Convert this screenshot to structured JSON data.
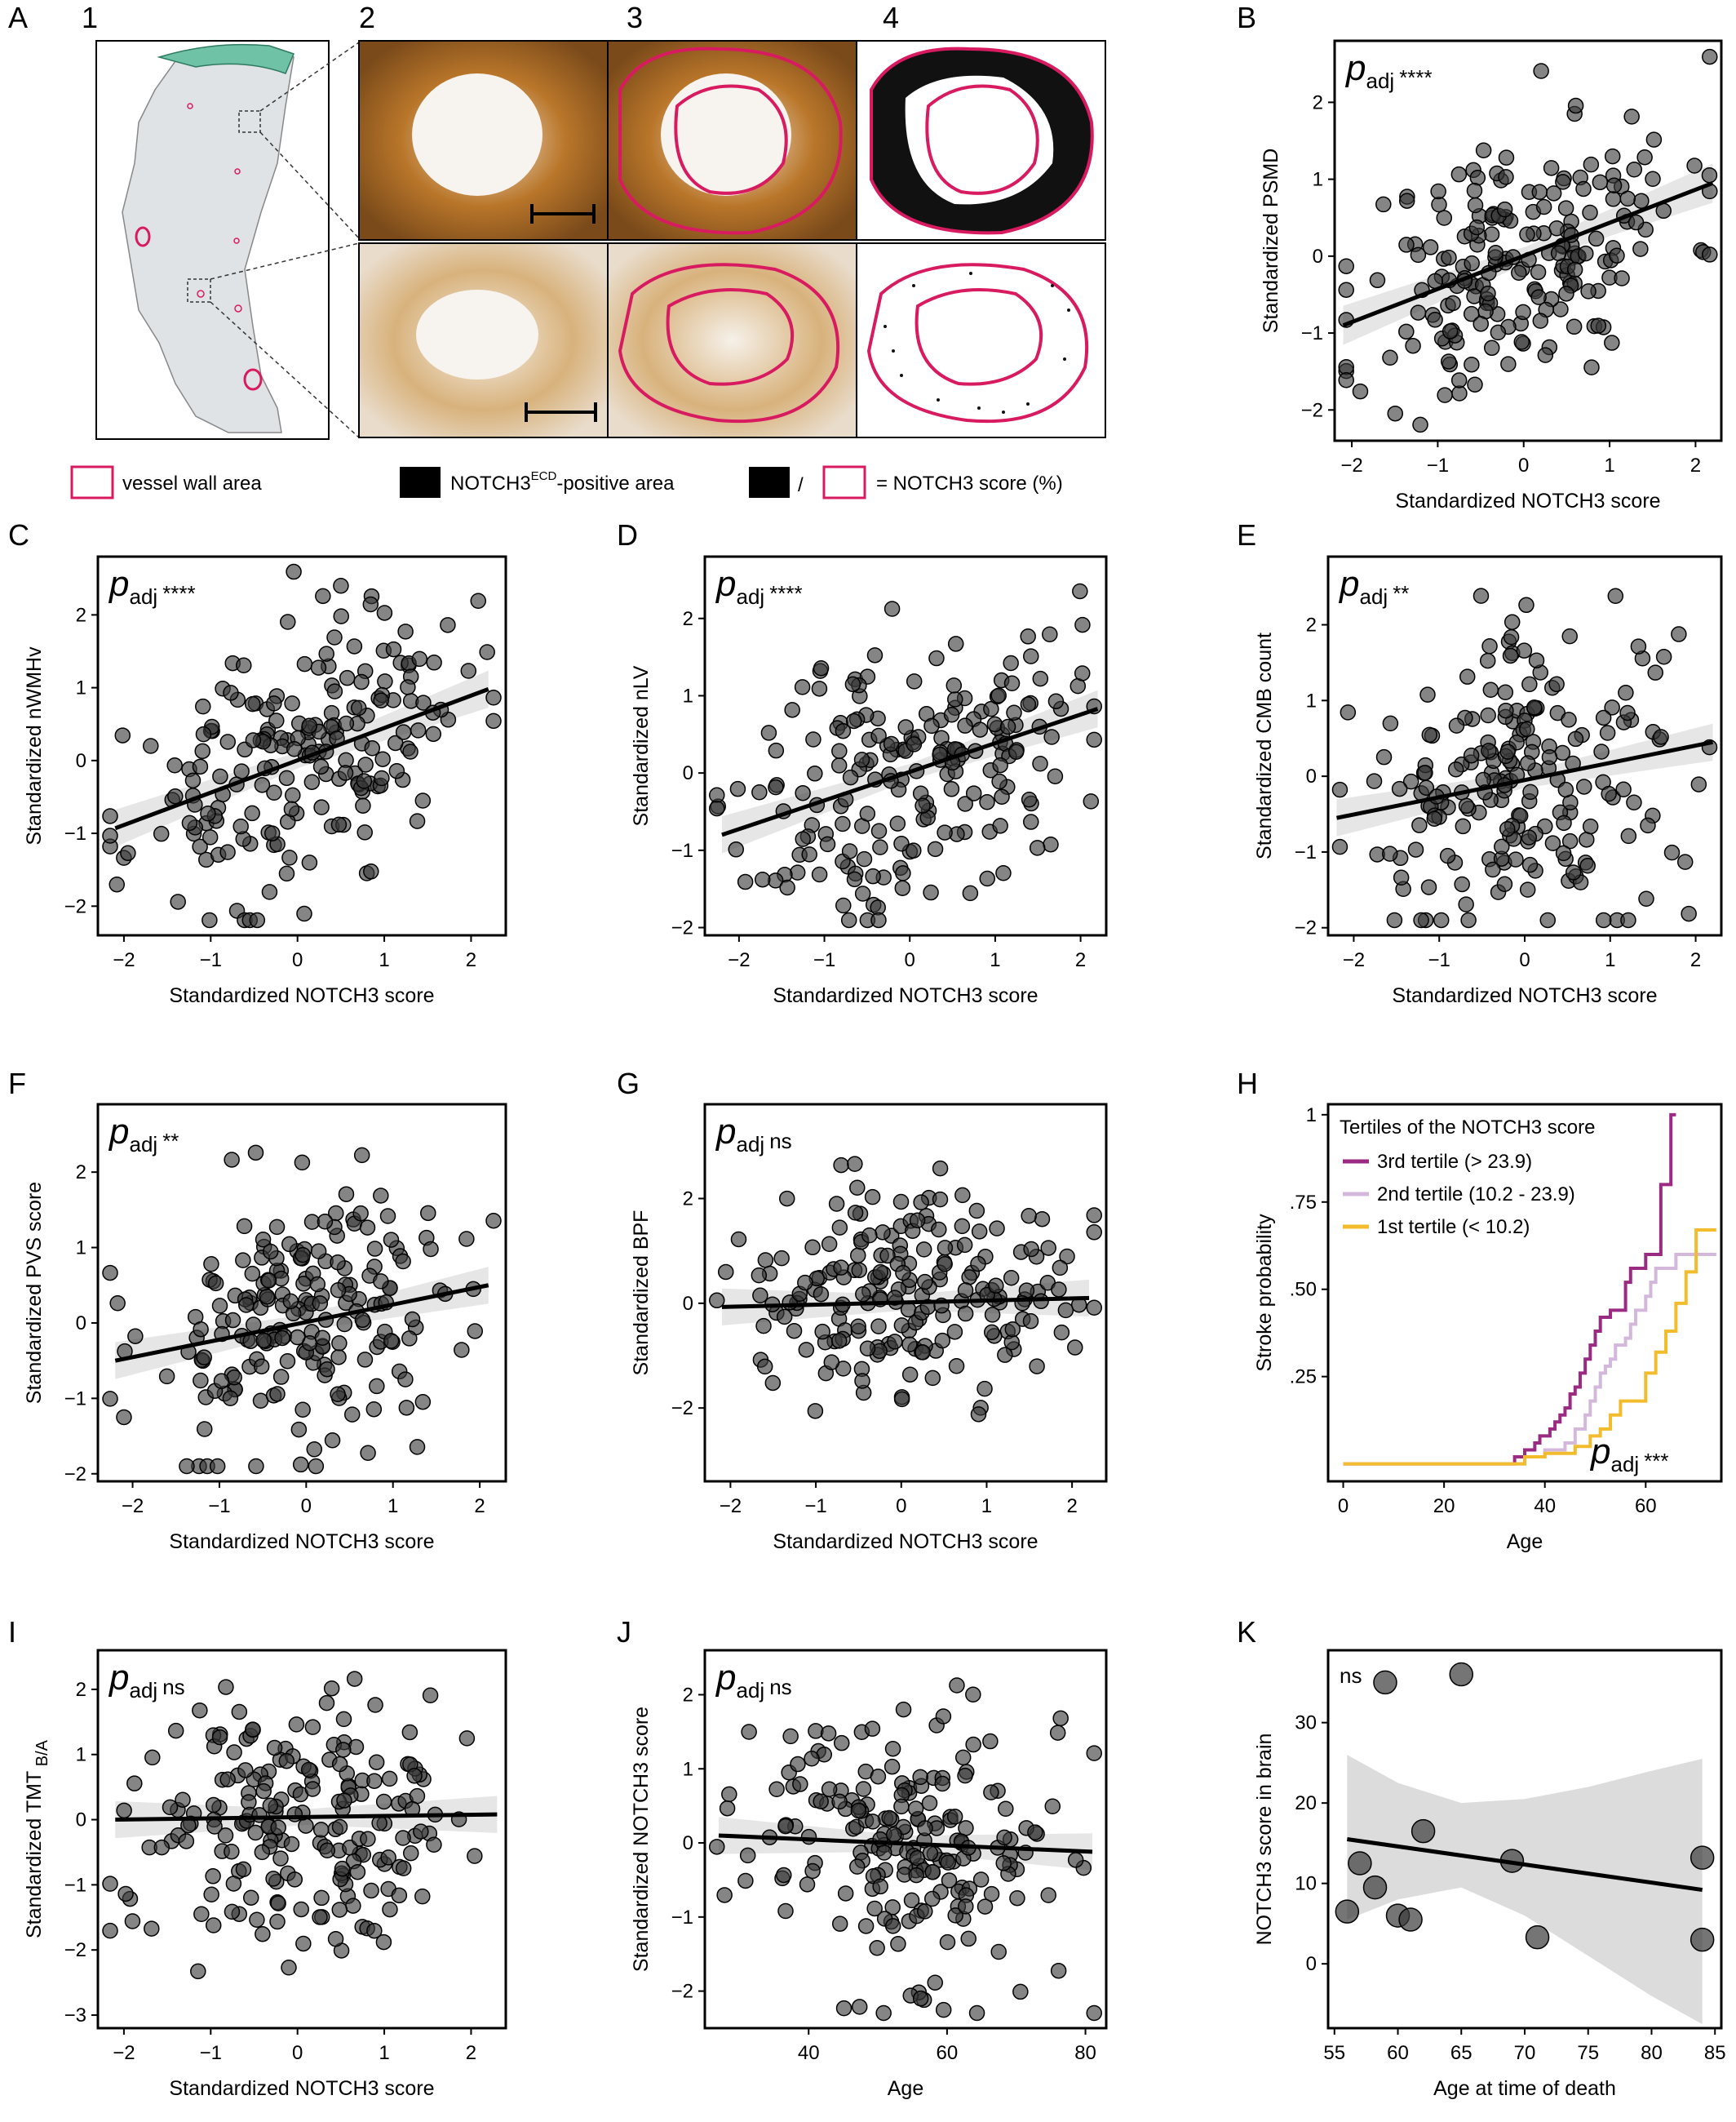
{
  "panel_a": {
    "letter": "A",
    "subpanel_numbers": [
      "1",
      "2",
      "3",
      "4"
    ],
    "legend": {
      "vessel_wall": "vessel wall area",
      "notch_positive_prefix": "NOTCH3",
      "notch_positive_sup": "ECD",
      "notch_positive_suffix": "-positive area",
      "ratio_slash": "/",
      "ratio_result": "= NOTCH3 score (%)"
    }
  },
  "stat_p": "p",
  "stat_sub": "adj",
  "chart_data": [
    {
      "id": "B",
      "type": "scatter",
      "xlabel": "Standardized NOTCH3 score",
      "ylabel": "Standardized PSMD",
      "xlim": [
        -2.2,
        2.3
      ],
      "ylim": [
        -2.4,
        2.8
      ],
      "xticks": [
        -2,
        -1,
        0,
        1,
        2
      ],
      "xtick_labels": [
        "−2",
        "−1",
        "0",
        "1",
        "2"
      ],
      "yticks": [
        -2,
        -1,
        0,
        1,
        2
      ],
      "ytick_labels": [
        "−2",
        "−1",
        "0",
        "1",
        "2"
      ],
      "significance": "****",
      "fit": {
        "x": [
          -2.1,
          2.2
        ],
        "y": [
          -0.9,
          0.95
        ]
      },
      "n_points": 200,
      "seed": 11,
      "slope": 0.43,
      "noise": 0.85
    },
    {
      "id": "C",
      "type": "scatter",
      "xlabel": "Standardized NOTCH3 score",
      "ylabel": "Standardized nWMHv",
      "xlim": [
        -2.3,
        2.4
      ],
      "ylim": [
        -2.4,
        2.8
      ],
      "xticks": [
        -2,
        -1,
        0,
        1,
        2
      ],
      "xtick_labels": [
        "−2",
        "−1",
        "0",
        "1",
        "2"
      ],
      "yticks": [
        -2,
        -1,
        0,
        1,
        2
      ],
      "ytick_labels": [
        "−2",
        "−1",
        "0",
        "1",
        "2"
      ],
      "significance": "****",
      "fit": {
        "x": [
          -2.1,
          2.2
        ],
        "y": [
          -0.93,
          0.98
        ]
      },
      "n_points": 200,
      "seed": 23,
      "slope": 0.44,
      "noise": 0.85
    },
    {
      "id": "D",
      "type": "scatter",
      "xlabel": "Standardized NOTCH3 score",
      "ylabel": "Standardized nLV",
      "xlim": [
        -2.4,
        2.3
      ],
      "ylim": [
        -2.1,
        2.8
      ],
      "xticks": [
        -2,
        -1,
        0,
        1,
        2
      ],
      "xtick_labels": [
        "−2",
        "−1",
        "0",
        "1",
        "2"
      ],
      "yticks": [
        -2,
        -1,
        0,
        1,
        2
      ],
      "ytick_labels": [
        "−2",
        "−1",
        "0",
        "1",
        "2"
      ],
      "significance": "****",
      "fit": {
        "x": [
          -2.2,
          2.2
        ],
        "y": [
          -0.8,
          0.83
        ]
      },
      "n_points": 200,
      "seed": 37,
      "slope": 0.37,
      "noise": 0.9
    },
    {
      "id": "E",
      "type": "scatter",
      "xlabel": "Standardized NOTCH3 score",
      "ylabel": "Standardized CMB count",
      "xlim": [
        -2.3,
        2.3
      ],
      "ylim": [
        -2.1,
        2.9
      ],
      "xticks": [
        -2,
        -1,
        0,
        1,
        2
      ],
      "xtick_labels": [
        "−2",
        "−1",
        "0",
        "1",
        "2"
      ],
      "yticks": [
        -2,
        -1,
        0,
        1,
        2
      ],
      "ytick_labels": [
        "−2",
        "−1",
        "0",
        "1",
        "2"
      ],
      "significance": "**",
      "fit": {
        "x": [
          -2.2,
          2.2
        ],
        "y": [
          -0.55,
          0.45
        ]
      },
      "n_points": 200,
      "seed": 41,
      "slope": 0.23,
      "noise": 0.95
    },
    {
      "id": "F",
      "type": "scatter",
      "xlabel": "Standardized NOTCH3 score",
      "ylabel": "Standardized PVS score",
      "xlim": [
        -2.4,
        2.3
      ],
      "ylim": [
        -2.1,
        2.9
      ],
      "xticks": [
        -2,
        -1,
        0,
        1,
        2
      ],
      "xtick_labels": [
        "−2",
        "−1",
        "0",
        "1",
        "2"
      ],
      "yticks": [
        -2,
        -1,
        0,
        1,
        2
      ],
      "ytick_labels": [
        "−2",
        "−1",
        "0",
        "1",
        "2"
      ],
      "significance": "**",
      "fit": {
        "x": [
          -2.2,
          2.1
        ],
        "y": [
          -0.5,
          0.5
        ]
      },
      "n_points": 200,
      "seed": 53,
      "slope": 0.23,
      "noise": 0.95
    },
    {
      "id": "G",
      "type": "scatter",
      "xlabel": "Standardized NOTCH3 score",
      "ylabel": "Standardized BPF",
      "xlim": [
        -2.3,
        2.4
      ],
      "ylim": [
        -3.4,
        3.8
      ],
      "xticks": [
        -2,
        -1,
        0,
        1,
        2
      ],
      "xtick_labels": [
        "−2",
        "−1",
        "0",
        "1",
        "2"
      ],
      "yticks": [
        -2,
        0,
        2
      ],
      "ytick_labels": [
        "−2",
        "0",
        "2"
      ],
      "significance": "ns",
      "fit": {
        "x": [
          -2.1,
          2.2
        ],
        "y": [
          -0.07,
          0.1
        ]
      },
      "n_points": 200,
      "seed": 67,
      "slope": 0.04,
      "noise": 1.0
    },
    {
      "id": "H",
      "type": "line",
      "xlabel": "Age",
      "ylabel": "Stroke probability",
      "xlim": [
        -3,
        75
      ],
      "ylim": [
        -0.05,
        1.03
      ],
      "xticks": [
        0,
        20,
        40,
        60
      ],
      "xtick_labels": [
        "0",
        "20",
        "40",
        "60"
      ],
      "yticks": [
        0.25,
        0.5,
        0.75,
        1.0
      ],
      "ytick_labels": [
        ".25",
        ".50",
        ".75",
        "1"
      ],
      "significance": "***",
      "legend_title": "Tertiles of the NOTCH3 score",
      "legend_position": "top-left",
      "series": [
        {
          "name": "3rd tertile (> 23.9)",
          "color": "#9b2a83",
          "x": [
            0,
            26,
            34,
            36,
            38,
            39,
            41,
            42,
            43,
            44,
            45,
            46,
            47,
            48,
            49,
            50,
            51,
            53,
            55,
            56,
            57,
            60,
            61,
            63,
            65,
            66
          ],
          "y": [
            0,
            0,
            0.02,
            0.04,
            0.06,
            0.08,
            0.1,
            0.12,
            0.14,
            0.16,
            0.2,
            0.22,
            0.26,
            0.3,
            0.34,
            0.38,
            0.42,
            0.44,
            0.44,
            0.52,
            0.56,
            0.6,
            0.6,
            0.8,
            1.0,
            1.0
          ]
        },
        {
          "name": "2nd tertile (10.2 - 23.9)",
          "color": "#d3b8dc",
          "x": [
            0,
            28,
            36,
            40,
            44,
            46,
            48,
            49,
            50,
            51,
            52,
            53,
            54,
            56,
            57,
            58,
            60,
            61,
            62,
            66,
            74
          ],
          "y": [
            0,
            0,
            0.02,
            0.04,
            0.06,
            0.1,
            0.14,
            0.18,
            0.22,
            0.26,
            0.28,
            0.3,
            0.34,
            0.36,
            0.4,
            0.44,
            0.48,
            0.52,
            0.56,
            0.6,
            0.6
          ]
        },
        {
          "name": "1st tertile (< 10.2)",
          "color": "#f2bc2c",
          "x": [
            0,
            30,
            36,
            40,
            46,
            49,
            51,
            53,
            55,
            58,
            60,
            62,
            64,
            66,
            68,
            70,
            74
          ],
          "y": [
            0,
            0,
            0.02,
            0.03,
            0.05,
            0.08,
            0.1,
            0.14,
            0.18,
            0.18,
            0.26,
            0.32,
            0.38,
            0.46,
            0.55,
            0.67,
            0.67
          ]
        }
      ]
    },
    {
      "id": "I",
      "type": "scatter",
      "xlabel": "Standardized NOTCH3 score",
      "ylabel": "Standardized TMT",
      "ylabel_sub": "B/A",
      "xlim": [
        -2.3,
        2.4
      ],
      "ylim": [
        -3.2,
        2.6
      ],
      "xticks": [
        -2,
        -1,
        0,
        1,
        2
      ],
      "xtick_labels": [
        "−2",
        "−1",
        "0",
        "1",
        "2"
      ],
      "yticks": [
        -3,
        -2,
        -1,
        0,
        1,
        2
      ],
      "ytick_labels": [
        "−3",
        "−2",
        "−1",
        "0",
        "1",
        "2"
      ],
      "significance": "ns",
      "fit": {
        "x": [
          -2.1,
          2.3
        ],
        "y": [
          0.0,
          0.08
        ]
      },
      "n_points": 200,
      "seed": 79,
      "slope": 0.02,
      "noise": 0.95
    },
    {
      "id": "J",
      "type": "scatter",
      "xlabel": "Age",
      "ylabel": "Standardized NOTCH3 score",
      "xlim": [
        25,
        83
      ],
      "ylim": [
        -2.5,
        2.6
      ],
      "xticks": [
        40,
        60,
        80
      ],
      "xtick_labels": [
        "40",
        "60",
        "80"
      ],
      "yticks": [
        -2,
        -1,
        0,
        1,
        2
      ],
      "ytick_labels": [
        "−2",
        "−1",
        "0",
        "1",
        "2"
      ],
      "significance": "ns",
      "fit": {
        "x": [
          27,
          81
        ],
        "y": [
          0.1,
          -0.12
        ]
      },
      "n_points": 200,
      "seed": 97,
      "slope": -0.004,
      "noise": 1.0,
      "x_center": 52,
      "x_spread": 12
    },
    {
      "id": "K",
      "type": "scatter",
      "xlabel": "Age at time of death",
      "ylabel": "NOTCH3 score in brain",
      "xlim": [
        54.5,
        85.5
      ],
      "ylim": [
        -8,
        39
      ],
      "xticks": [
        55,
        60,
        65,
        70,
        75,
        80,
        85
      ],
      "xtick_labels": [
        "55",
        "60",
        "65",
        "70",
        "75",
        "80",
        "85"
      ],
      "yticks": [
        0,
        10,
        20,
        30
      ],
      "ytick_labels": [
        "0",
        "10",
        "20",
        "30"
      ],
      "significance": "ns",
      "fit": {
        "x": [
          56,
          84
        ],
        "y": [
          15.5,
          9.2
        ]
      },
      "band": {
        "x": [
          56,
          60,
          65,
          70,
          75,
          80,
          84
        ],
        "upper": [
          26,
          22.5,
          20,
          20.5,
          22,
          24,
          25.5
        ],
        "lower": [
          5.5,
          8,
          9.5,
          6,
          1,
          -4,
          -7.5
        ]
      },
      "x": [
        56,
        57,
        58.2,
        59,
        60,
        61,
        62,
        65,
        69,
        71,
        84,
        84
      ],
      "y": [
        6.5,
        12.5,
        9.5,
        35,
        6,
        5.5,
        16.5,
        36,
        12.8,
        3.3,
        13.2,
        3
      ]
    }
  ]
}
